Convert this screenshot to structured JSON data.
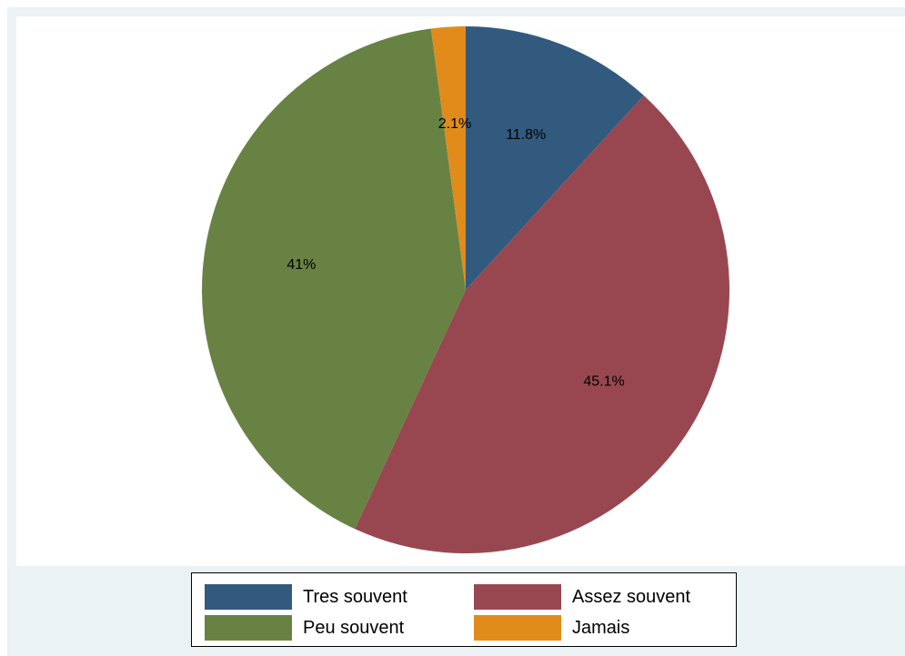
{
  "chart_data": {
    "type": "pie",
    "slices": [
      {
        "name": "Tres souvent",
        "value": 11.8,
        "label": "11.8%",
        "color": "#315a7e"
      },
      {
        "name": "Assez souvent",
        "value": 45.1,
        "label": "45.1%",
        "color": "#984750"
      },
      {
        "name": "Peu souvent",
        "value": 41.0,
        "label": "41%",
        "color": "#688244"
      },
      {
        "name": "Jamais",
        "value": 2.1,
        "label": "2.1%",
        "color": "#e18c1a"
      }
    ],
    "start_angle_deg": 90,
    "direction": "clockwise",
    "legend_position": "bottom",
    "legend_columns": 2
  },
  "colors": {
    "outer_background": "#eaf2f3",
    "plot_background": "#ffffff"
  }
}
